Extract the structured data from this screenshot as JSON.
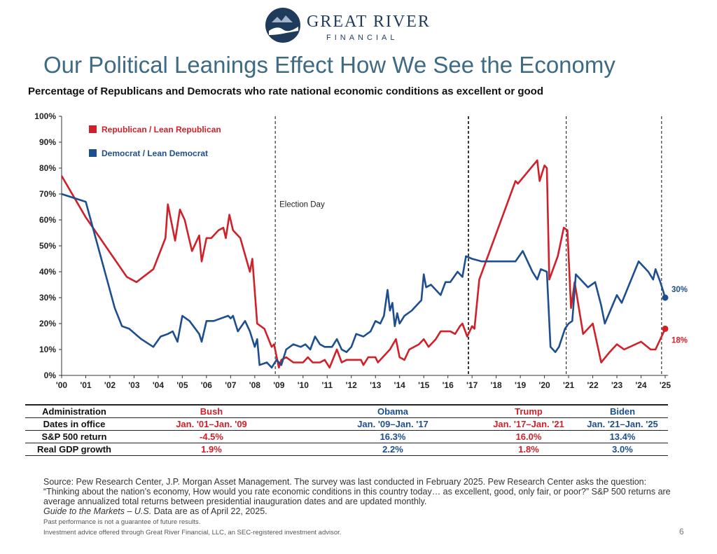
{
  "brand": {
    "name": "GREAT RIVER",
    "sub": "FINANCIAL"
  },
  "slide_title": "Our Political Leanings Effect How We See the Economy",
  "colors": {
    "republican": "#d0202a",
    "democrat": "#1d4e8f",
    "title": "#3d6a85"
  },
  "chart_data": {
    "type": "line",
    "title": "Percentage of Republicans and Democrats who rate national economic conditions as excellent or good",
    "ylim": [
      0,
      100
    ],
    "y_ticks": [
      "0%",
      "10%",
      "20%",
      "30%",
      "40%",
      "50%",
      "60%",
      "70%",
      "80%",
      "90%",
      "100%"
    ],
    "x_ticks": [
      "'00",
      "'01",
      "'02",
      "'03",
      "'04",
      "'05",
      "'06",
      "'07",
      "'08",
      "'09",
      "'10",
      "'11",
      "'12",
      "'13",
      "'14",
      "'15",
      "'16",
      "'17",
      "'18",
      "'19",
      "'20",
      "'21",
      "'22",
      "'23",
      "'24",
      "'25"
    ],
    "xlim": [
      2000,
      2025
    ],
    "grid": false,
    "legend": "top-left",
    "vlines": [
      {
        "x": 2008.85,
        "style": "dashed",
        "label": "Election Day"
      },
      {
        "x": 2016.85,
        "style": "dashed-bold",
        "label": ""
      },
      {
        "x": 2020.9,
        "style": "dashed",
        "label": ""
      },
      {
        "x": 2024.85,
        "style": "dashed",
        "label": ""
      }
    ],
    "series": [
      {
        "name": "Republican / Lean Republican",
        "color": "#d0202a",
        "end_label": "18%",
        "points": [
          [
            2000.0,
            77
          ],
          [
            2001.0,
            61
          ],
          [
            2002.7,
            38
          ],
          [
            2003.1,
            36
          ],
          [
            2003.8,
            41
          ],
          [
            2004.3,
            53
          ],
          [
            2004.4,
            66
          ],
          [
            2004.7,
            52
          ],
          [
            2004.9,
            64
          ],
          [
            2005.1,
            60
          ],
          [
            2005.4,
            48
          ],
          [
            2005.7,
            54
          ],
          [
            2005.8,
            44
          ],
          [
            2006.0,
            53
          ],
          [
            2006.2,
            53
          ],
          [
            2006.5,
            56
          ],
          [
            2006.7,
            57
          ],
          [
            2006.8,
            53
          ],
          [
            2006.95,
            62
          ],
          [
            2007.1,
            56
          ],
          [
            2007.4,
            53
          ],
          [
            2007.8,
            40
          ],
          [
            2007.9,
            45
          ],
          [
            2008.1,
            20
          ],
          [
            2008.4,
            18
          ],
          [
            2008.7,
            11
          ],
          [
            2008.8,
            12
          ],
          [
            2009.0,
            3
          ],
          [
            2009.1,
            6
          ],
          [
            2009.3,
            7
          ],
          [
            2009.6,
            5
          ],
          [
            2010.0,
            5
          ],
          [
            2010.2,
            7
          ],
          [
            2010.4,
            5
          ],
          [
            2010.7,
            5
          ],
          [
            2010.9,
            6
          ],
          [
            2011.1,
            3
          ],
          [
            2011.4,
            10
          ],
          [
            2011.6,
            5
          ],
          [
            2011.8,
            6
          ],
          [
            2012.0,
            6
          ],
          [
            2012.4,
            6
          ],
          [
            2012.5,
            4
          ],
          [
            2012.7,
            7
          ],
          [
            2013.0,
            7
          ],
          [
            2013.1,
            5
          ],
          [
            2013.4,
            8
          ],
          [
            2013.6,
            10
          ],
          [
            2013.85,
            14
          ],
          [
            2014.0,
            7
          ],
          [
            2014.2,
            6
          ],
          [
            2014.4,
            10
          ],
          [
            2014.8,
            12
          ],
          [
            2015.0,
            14
          ],
          [
            2015.2,
            11
          ],
          [
            2015.5,
            14
          ],
          [
            2015.7,
            17
          ],
          [
            2016.1,
            17
          ],
          [
            2016.3,
            16
          ],
          [
            2016.5,
            19
          ],
          [
            2016.6,
            20
          ],
          [
            2016.8,
            15
          ],
          [
            2017.0,
            19
          ],
          [
            2017.1,
            18
          ],
          [
            2017.3,
            37
          ],
          [
            2018.8,
            75
          ],
          [
            2018.9,
            74
          ],
          [
            2019.7,
            83
          ],
          [
            2019.8,
            75
          ],
          [
            2020.0,
            81
          ],
          [
            2020.1,
            80
          ],
          [
            2020.2,
            37
          ],
          [
            2020.55,
            46
          ],
          [
            2020.8,
            57
          ],
          [
            2020.95,
            56
          ],
          [
            2021.1,
            26
          ],
          [
            2021.25,
            36
          ],
          [
            2021.6,
            16
          ],
          [
            2022.0,
            20
          ],
          [
            2022.35,
            5
          ],
          [
            2022.7,
            9
          ],
          [
            2023.0,
            12
          ],
          [
            2023.3,
            10
          ],
          [
            2024.0,
            13
          ],
          [
            2024.4,
            10
          ],
          [
            2024.6,
            10
          ],
          [
            2024.8,
            14
          ],
          [
            2025.0,
            18
          ]
        ]
      },
      {
        "name": "Democrat / Lean Democrat",
        "color": "#1d4e8f",
        "end_label": "30%",
        "points": [
          [
            2000.0,
            70
          ],
          [
            2001.0,
            67
          ],
          [
            2002.2,
            26
          ],
          [
            2002.5,
            19
          ],
          [
            2002.8,
            18
          ],
          [
            2003.3,
            14
          ],
          [
            2003.8,
            11
          ],
          [
            2004.1,
            15
          ],
          [
            2004.4,
            16
          ],
          [
            2004.6,
            17
          ],
          [
            2004.8,
            13
          ],
          [
            2005.0,
            23
          ],
          [
            2005.3,
            21
          ],
          [
            2005.7,
            16
          ],
          [
            2005.8,
            13
          ],
          [
            2006.0,
            21
          ],
          [
            2006.3,
            21
          ],
          [
            2006.9,
            23
          ],
          [
            2007.0,
            22
          ],
          [
            2007.1,
            23
          ],
          [
            2007.3,
            17
          ],
          [
            2007.6,
            21
          ],
          [
            2007.8,
            17
          ],
          [
            2008.0,
            11
          ],
          [
            2008.1,
            14
          ],
          [
            2008.2,
            4
          ],
          [
            2008.5,
            5
          ],
          [
            2008.7,
            3
          ],
          [
            2008.9,
            6
          ],
          [
            2009.1,
            4
          ],
          [
            2009.3,
            10
          ],
          [
            2009.6,
            12
          ],
          [
            2009.9,
            11
          ],
          [
            2010.1,
            12
          ],
          [
            2010.3,
            10
          ],
          [
            2010.5,
            15
          ],
          [
            2010.7,
            12
          ],
          [
            2010.9,
            11
          ],
          [
            2011.2,
            11
          ],
          [
            2011.4,
            14
          ],
          [
            2011.6,
            10
          ],
          [
            2011.8,
            9
          ],
          [
            2012.0,
            11
          ],
          [
            2012.2,
            16
          ],
          [
            2012.5,
            15
          ],
          [
            2012.8,
            17
          ],
          [
            2013.0,
            21
          ],
          [
            2013.2,
            20
          ],
          [
            2013.35,
            23
          ],
          [
            2013.5,
            33
          ],
          [
            2013.6,
            25
          ],
          [
            2013.7,
            28
          ],
          [
            2013.8,
            19
          ],
          [
            2013.9,
            24
          ],
          [
            2014.0,
            20
          ],
          [
            2014.2,
            23
          ],
          [
            2014.5,
            25
          ],
          [
            2014.8,
            28
          ],
          [
            2014.9,
            29
          ],
          [
            2015.0,
            39
          ],
          [
            2015.1,
            34
          ],
          [
            2015.3,
            35
          ],
          [
            2015.5,
            33
          ],
          [
            2015.7,
            31
          ],
          [
            2015.9,
            36
          ],
          [
            2016.1,
            36
          ],
          [
            2016.4,
            40
          ],
          [
            2016.6,
            38
          ],
          [
            2016.75,
            46
          ],
          [
            2017.0,
            45
          ],
          [
            2017.4,
            44
          ],
          [
            2018.8,
            44
          ],
          [
            2019.1,
            48
          ],
          [
            2019.3,
            44
          ],
          [
            2019.5,
            40
          ],
          [
            2019.7,
            37
          ],
          [
            2019.85,
            41
          ],
          [
            2020.1,
            40
          ],
          [
            2020.25,
            11
          ],
          [
            2020.45,
            9
          ],
          [
            2020.6,
            11
          ],
          [
            2020.85,
            18
          ],
          [
            2021.0,
            20
          ],
          [
            2021.15,
            21
          ],
          [
            2021.3,
            39
          ],
          [
            2021.5,
            37
          ],
          [
            2021.8,
            34
          ],
          [
            2022.1,
            36
          ],
          [
            2022.35,
            27
          ],
          [
            2022.5,
            20
          ],
          [
            2023.0,
            31
          ],
          [
            2023.2,
            28
          ],
          [
            2023.9,
            44
          ],
          [
            2024.3,
            40
          ],
          [
            2024.5,
            37
          ],
          [
            2024.6,
            41
          ],
          [
            2024.8,
            36
          ],
          [
            2025.0,
            30
          ]
        ]
      }
    ]
  },
  "table": {
    "headers": [
      "Administration",
      "Bush",
      "Obama",
      "Trump",
      "Biden"
    ],
    "rows": [
      [
        "Dates in office",
        "Jan. '01–Jan. '09",
        "Jan. '09–Jan. '17",
        "Jan. '17–Jan. '21",
        "Jan. '21–Jan. '25"
      ],
      [
        "S&P 500 return",
        "-4.5%",
        "16.3%",
        "16.0%",
        "13.4%"
      ],
      [
        "Real GDP growth",
        "1.9%",
        "2.2%",
        "1.8%",
        "3.0%"
      ]
    ]
  },
  "footer": {
    "source": "Source: Pew Research Center, J.P. Morgan Asset Management. The survey was last conducted in February 2025. Pew Research Center asks the question: “Thinking about the nation’s economy, How would you rate economic conditions in this country today… as excellent, good, only fair, or poor?” S&P 500 returns are average annualized total returns between presidential inauguration dates and are updated monthly.",
    "guide_title": "Guide to the Markets – U.S.",
    "guide_rest": " Data are as of April 22, 2025.",
    "disclaimer": "Past performance is not a guarantee of future results.",
    "advisor": "Investment advice offered through Great River Financial, LLC, an SEC-registered investment advisor.",
    "page_number": "6"
  }
}
